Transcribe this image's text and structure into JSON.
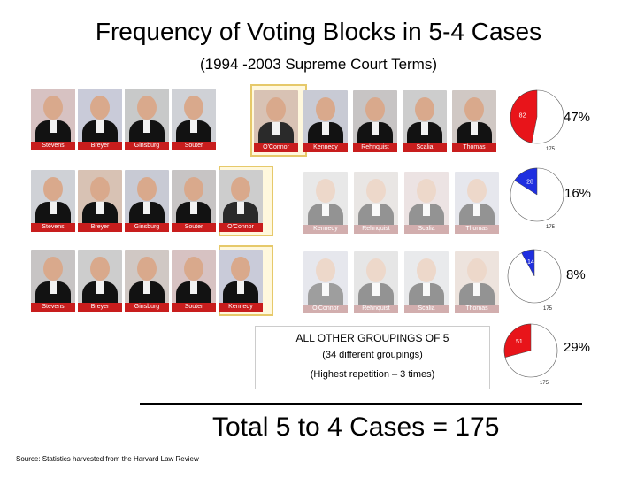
{
  "title": "Frequency of Voting Blocks in 5-4 Cases",
  "subtitle": "(1994 -2003 Supreme Court Terms)",
  "groups": [
    {
      "left": [
        {
          "name": "Stevens",
          "active": true
        },
        {
          "name": "Breyer",
          "active": true
        },
        {
          "name": "Ginsburg",
          "active": true
        },
        {
          "name": "Souter",
          "active": true
        }
      ],
      "right": [
        {
          "name": "O'Connor",
          "active": true
        },
        {
          "name": "Kennedy",
          "active": true
        },
        {
          "name": "Rehnquist",
          "active": true
        },
        {
          "name": "Scalia",
          "active": true
        },
        {
          "name": "Thomas",
          "active": true
        }
      ]
    },
    {
      "left": [
        {
          "name": "Stevens",
          "active": true
        },
        {
          "name": "Breyer",
          "active": true
        },
        {
          "name": "Ginsburg",
          "active": true
        },
        {
          "name": "Souter",
          "active": true
        },
        {
          "name": "O'Connor",
          "active": true
        }
      ],
      "right": [
        {
          "name": "Kennedy",
          "active": false
        },
        {
          "name": "Rehnquist",
          "active": false
        },
        {
          "name": "Scalia",
          "active": false
        },
        {
          "name": "Thomas",
          "active": false
        }
      ]
    },
    {
      "left": [
        {
          "name": "Stevens",
          "active": true
        },
        {
          "name": "Breyer",
          "active": true
        },
        {
          "name": "Ginsburg",
          "active": true
        },
        {
          "name": "Souter",
          "active": true
        },
        {
          "name": "Kennedy",
          "active": true
        }
      ],
      "right": [
        {
          "name": "O'Connor",
          "active": false
        },
        {
          "name": "Rehnquist",
          "active": false
        },
        {
          "name": "Scalia",
          "active": false
        },
        {
          "name": "Thomas",
          "active": false
        }
      ]
    }
  ],
  "other": {
    "title": "ALL OTHER GROUPINGS OF 5",
    "subtitle": "(34 different groupings)",
    "note": "(Highest repetition – 3 times)"
  },
  "total": "Total 5 to 4 Cases = 175",
  "source": "Source: Statistics harvested from the Harvard Law Review",
  "colors": {
    "slice_red": "#e8141a",
    "slice_blue": "#1f2fe0",
    "namebar_red": "#c81d1d",
    "highlight": "#e6c96a"
  },
  "chart_data": {
    "type": "pie",
    "total": 175,
    "charts": [
      {
        "value": 82,
        "total": 175,
        "percent_label": "47%",
        "value_label": "82",
        "total_label": "175",
        "color": "#e8141a"
      },
      {
        "value": 28,
        "total": 175,
        "percent_label": "16%",
        "value_label": "28",
        "total_label": "175",
        "color": "#1f2fe0"
      },
      {
        "value": 14,
        "total": 175,
        "percent_label": "8%",
        "value_label": "14",
        "total_label": "175",
        "color": "#1f2fe0"
      },
      {
        "value": 51,
        "total": 175,
        "percent_label": "29%",
        "value_label": "51",
        "total_label": "175",
        "color": "#e8141a"
      }
    ]
  }
}
